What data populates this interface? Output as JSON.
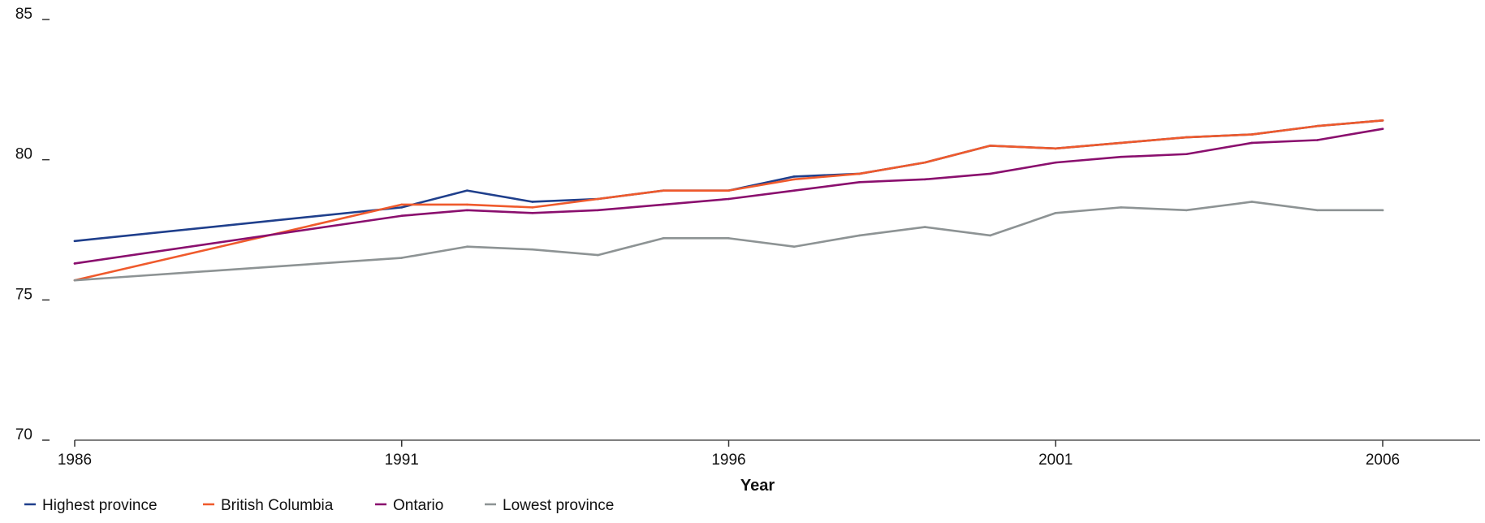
{
  "chart_data": {
    "type": "line",
    "title": "",
    "xlabel": "Year",
    "ylabel": "",
    "x": [
      1986,
      1991,
      1992,
      1993,
      1994,
      1995,
      1996,
      1997,
      1998,
      1999,
      2000,
      2001,
      2002,
      2003,
      2004,
      2005,
      2006
    ],
    "x_ticks": [
      "1986",
      "1991",
      "1996",
      "2001",
      "2006"
    ],
    "y_ticks": [
      "70",
      "75",
      "80",
      "85"
    ],
    "xlim": [
      1986,
      2007.5
    ],
    "ylim": [
      70,
      85
    ],
    "grid": false,
    "legend_position": "bottom-left",
    "series": [
      {
        "name": "Highest province",
        "color": "#1f3f8c",
        "values": [
          77.1,
          78.3,
          78.9,
          78.5,
          78.6,
          78.9,
          78.9,
          79.4,
          79.5,
          79.9,
          80.5,
          80.4,
          80.6,
          80.8,
          80.9,
          81.2,
          81.4
        ]
      },
      {
        "name": "British Columbia",
        "color": "#ef5a2c",
        "values": [
          75.7,
          78.4,
          78.4,
          78.3,
          78.6,
          78.9,
          78.9,
          79.3,
          79.5,
          79.9,
          80.5,
          80.4,
          80.6,
          80.8,
          80.9,
          81.2,
          81.4
        ]
      },
      {
        "name": "Ontario",
        "color": "#8a0f6e",
        "values": [
          76.3,
          78.0,
          78.2,
          78.1,
          78.2,
          78.4,
          78.6,
          78.9,
          79.2,
          79.3,
          79.5,
          79.9,
          80.1,
          80.2,
          80.6,
          80.7,
          81.1
        ]
      },
      {
        "name": "Lowest province",
        "color": "#8d9394",
        "values": [
          75.7,
          76.5,
          76.9,
          76.8,
          76.6,
          77.2,
          77.2,
          76.9,
          77.3,
          77.6,
          77.3,
          78.1,
          78.3,
          78.2,
          78.5,
          78.2,
          78.2
        ]
      }
    ]
  }
}
